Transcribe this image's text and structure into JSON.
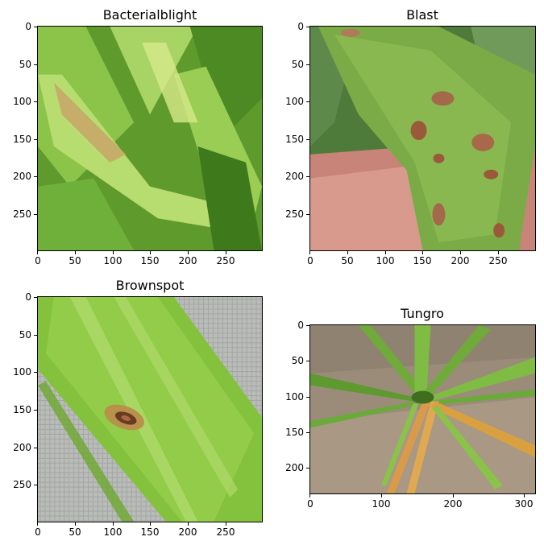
{
  "panels": [
    {
      "title": "Bacterialblight",
      "x_ticks": [
        "0",
        "50",
        "100",
        "150",
        "200",
        "250"
      ],
      "y_ticks": [
        "0",
        "50",
        "100",
        "150",
        "200",
        "250"
      ]
    },
    {
      "title": "Blast",
      "x_ticks": [
        "0",
        "50",
        "100",
        "150",
        "200",
        "250"
      ],
      "y_ticks": [
        "0",
        "50",
        "100",
        "150",
        "200",
        "250"
      ]
    },
    {
      "title": "Brownspot",
      "x_ticks": [
        "0",
        "50",
        "100",
        "150",
        "200",
        "250"
      ],
      "y_ticks": [
        "0",
        "50",
        "100",
        "150",
        "200",
        "250"
      ]
    },
    {
      "title": "Tungro",
      "x_ticks": [
        "0",
        "100",
        "200",
        "300"
      ],
      "y_ticks": [
        "0",
        "50",
        "100",
        "150",
        "200"
      ]
    }
  ],
  "colors": {
    "leaf_green": "#7fb83a",
    "dark_green": "#3f6e1e",
    "lesion_brown": "#9a5a3a",
    "soil": "#9b8c7a",
    "finger": "#c9847a",
    "cloth": "#b9bcb8"
  }
}
